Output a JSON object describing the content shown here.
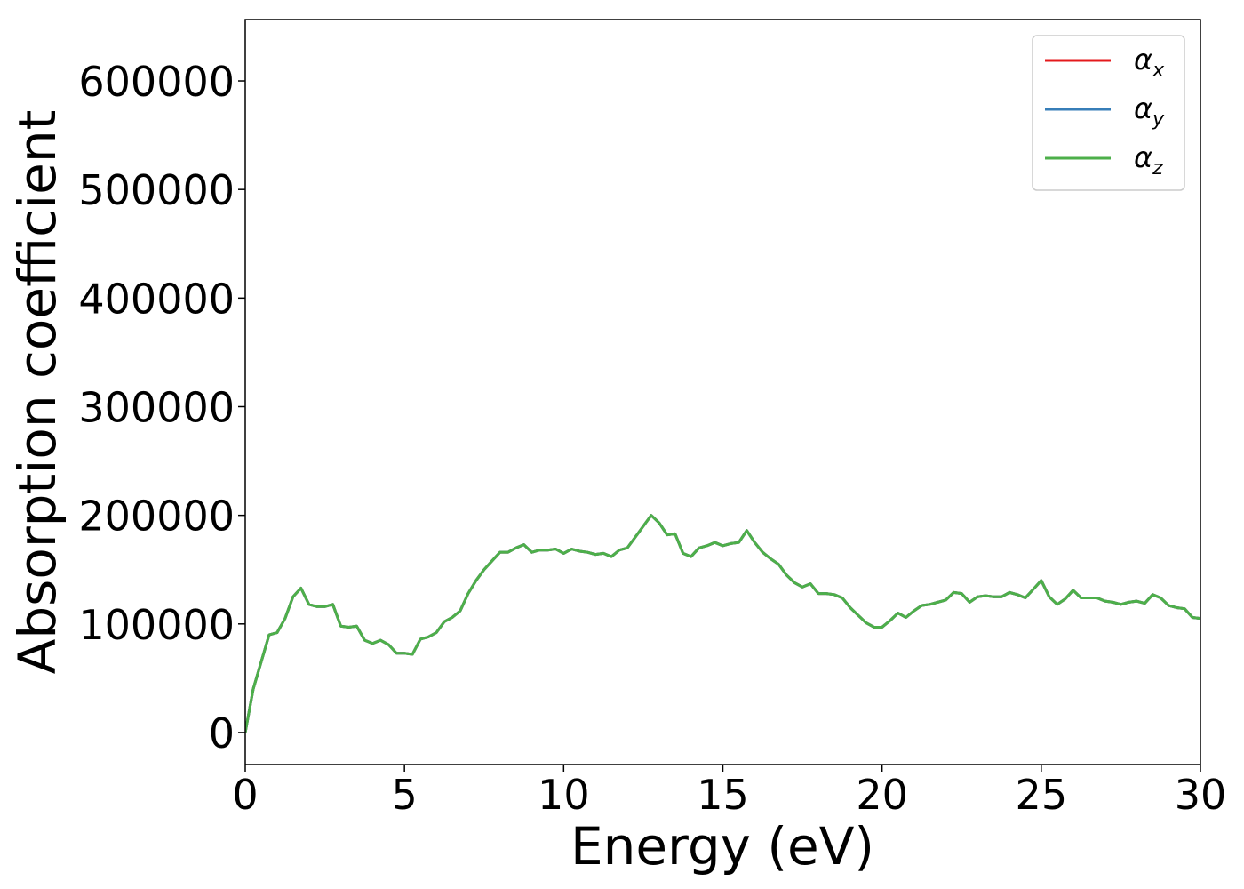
{
  "chart_data": {
    "type": "line",
    "xlabel": "Energy (eV)",
    "ylabel": "Absorption coefficient",
    "x": [
      0,
      0.25,
      0.5,
      0.75,
      1,
      1.25,
      1.5,
      1.75,
      2,
      2.25,
      2.5,
      2.75,
      3,
      3.25,
      3.5,
      3.75,
      4,
      4.25,
      4.5,
      4.75,
      5,
      5.25,
      5.5,
      5.75,
      6,
      6.25,
      6.5,
      6.75,
      7,
      7.25,
      7.5,
      7.75,
      8,
      8.25,
      8.5,
      8.75,
      9,
      9.25,
      9.5,
      9.75,
      10,
      10.25,
      10.5,
      10.75,
      11,
      11.25,
      11.5,
      11.75,
      12,
      12.25,
      12.5,
      12.75,
      13,
      13.25,
      13.5,
      13.75,
      14,
      14.25,
      14.5,
      14.75,
      15,
      15.25,
      15.5,
      15.75,
      16,
      16.25,
      16.5,
      16.75,
      17,
      17.25,
      17.5,
      17.75,
      18,
      18.25,
      18.5,
      18.75,
      19,
      19.25,
      19.5,
      19.75,
      20,
      20.25,
      20.5,
      20.75,
      21,
      21.25,
      21.5,
      21.75,
      22,
      22.25,
      22.5,
      22.75,
      23,
      23.25,
      23.5,
      23.75,
      24,
      24.25,
      24.5,
      24.75,
      25,
      25.25,
      25.5,
      25.75,
      26,
      26.25,
      26.5,
      26.75,
      27,
      27.25,
      27.5,
      27.75,
      28,
      28.25,
      28.5,
      28.75,
      29,
      29.25,
      29.5,
      29.75,
      30
    ],
    "series": [
      {
        "name": "αx",
        "color": "#e41a1c",
        "values": [
          0,
          40000,
          65000,
          90000,
          92000,
          105000,
          125000,
          133000,
          118000,
          116000,
          116000,
          118000,
          98000,
          97000,
          98000,
          85000,
          82000,
          85000,
          81000,
          73000,
          73000,
          72000,
          86000,
          88000,
          92000,
          102000,
          106000,
          112000,
          128000,
          140000,
          150000,
          158000,
          166000,
          166000,
          170000,
          173000,
          166000,
          168000,
          168000,
          169000,
          165000,
          169000,
          167000,
          166000,
          164000,
          165000,
          162000,
          168000,
          170000,
          180000,
          190000,
          200000,
          193000,
          182000,
          183000,
          165000,
          162000,
          170000,
          172000,
          175000,
          172000,
          174000,
          175000,
          186000,
          175000,
          166000,
          160000,
          155000,
          145000,
          138000,
          134000,
          137000,
          128000,
          128000,
          127000,
          124000,
          115000,
          108000,
          101000,
          97000,
          97000,
          103000,
          110000,
          106000,
          112000,
          117000,
          118000,
          120000,
          122000,
          129000,
          128000,
          120000,
          125000,
          126000,
          125000,
          125000,
          129000,
          127000,
          124000,
          132000,
          140000,
          125000,
          118000,
          123000,
          131000,
          124000,
          124000,
          124000,
          121000,
          120000,
          118000,
          120000,
          121000,
          119000,
          127000,
          124000,
          117000,
          115000,
          114000,
          106000,
          105000
        ]
      },
      {
        "name": "αy",
        "color": "#377eb8",
        "values": [
          0,
          40000,
          65000,
          90000,
          92000,
          105000,
          125000,
          133000,
          118000,
          116000,
          116000,
          118000,
          98000,
          97000,
          98000,
          85000,
          82000,
          85000,
          81000,
          73000,
          73000,
          72000,
          86000,
          88000,
          92000,
          102000,
          106000,
          112000,
          128000,
          140000,
          150000,
          158000,
          166000,
          166000,
          170000,
          173000,
          166000,
          168000,
          168000,
          169000,
          165000,
          169000,
          167000,
          166000,
          164000,
          165000,
          162000,
          168000,
          170000,
          180000,
          190000,
          200000,
          193000,
          182000,
          183000,
          165000,
          162000,
          170000,
          172000,
          175000,
          172000,
          174000,
          175000,
          186000,
          175000,
          166000,
          160000,
          155000,
          145000,
          138000,
          134000,
          137000,
          128000,
          128000,
          127000,
          124000,
          115000,
          108000,
          101000,
          97000,
          97000,
          103000,
          110000,
          106000,
          112000,
          117000,
          118000,
          120000,
          122000,
          129000,
          128000,
          120000,
          125000,
          126000,
          125000,
          125000,
          129000,
          127000,
          124000,
          132000,
          140000,
          125000,
          118000,
          123000,
          131000,
          124000,
          124000,
          124000,
          121000,
          120000,
          118000,
          120000,
          121000,
          119000,
          127000,
          124000,
          117000,
          115000,
          114000,
          106000,
          105000
        ]
      },
      {
        "name": "αz",
        "color": "#4daf4a",
        "values": [
          0,
          40000,
          65000,
          90000,
          92000,
          105000,
          125000,
          133000,
          118000,
          116000,
          116000,
          118000,
          98000,
          97000,
          98000,
          85000,
          82000,
          85000,
          81000,
          73000,
          73000,
          72000,
          86000,
          88000,
          92000,
          102000,
          106000,
          112000,
          128000,
          140000,
          150000,
          158000,
          166000,
          166000,
          170000,
          173000,
          166000,
          168000,
          168000,
          169000,
          165000,
          169000,
          167000,
          166000,
          164000,
          165000,
          162000,
          168000,
          170000,
          180000,
          190000,
          200000,
          193000,
          182000,
          183000,
          165000,
          162000,
          170000,
          172000,
          175000,
          172000,
          174000,
          175000,
          186000,
          175000,
          166000,
          160000,
          155000,
          145000,
          138000,
          134000,
          137000,
          128000,
          128000,
          127000,
          124000,
          115000,
          108000,
          101000,
          97000,
          97000,
          103000,
          110000,
          106000,
          112000,
          117000,
          118000,
          120000,
          122000,
          129000,
          128000,
          120000,
          125000,
          126000,
          125000,
          125000,
          129000,
          127000,
          124000,
          132000,
          140000,
          125000,
          118000,
          123000,
          131000,
          124000,
          124000,
          124000,
          121000,
          120000,
          118000,
          120000,
          121000,
          119000,
          127000,
          124000,
          117000,
          115000,
          114000,
          106000,
          105000
        ]
      }
    ],
    "xlim": [
      0,
      30
    ],
    "xticks": [
      0,
      5,
      10,
      15,
      20,
      25,
      30
    ],
    "ylim": [
      -29500,
      656500
    ],
    "yticks": [
      0,
      100000,
      200000,
      300000,
      400000,
      500000,
      600000
    ],
    "grid": false,
    "legend": "upper right"
  }
}
